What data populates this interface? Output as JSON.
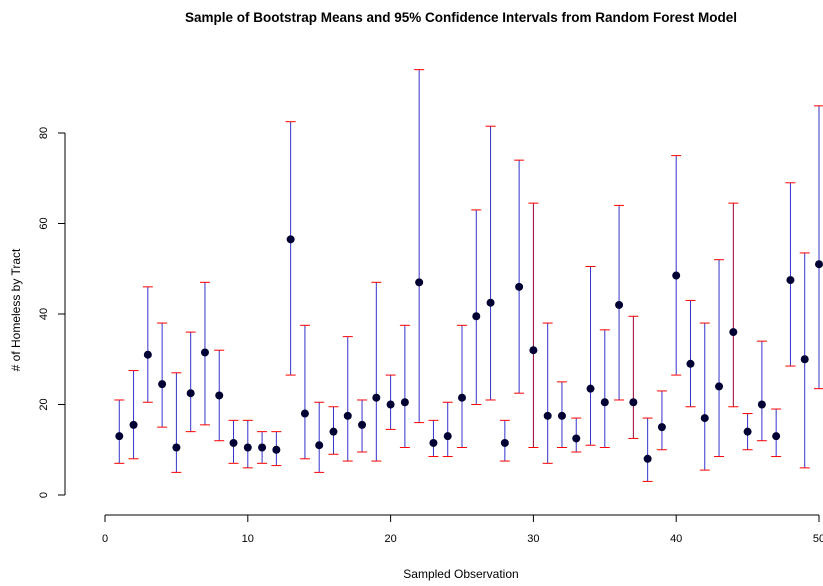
{
  "chart_data": {
    "type": "scatter",
    "title": "Sample of Bootstrap Means and 95% Confidence Intervals from Random Forest Model",
    "xlabel": "Sampled Observation",
    "ylabel": "# of Homeless by Tract",
    "xlim": [
      0,
      50
    ],
    "ylim": [
      0,
      95
    ],
    "xticks": [
      "0",
      "10",
      "20",
      "30",
      "40",
      "50"
    ],
    "yticks": [
      "0",
      "20",
      "40",
      "60",
      "80"
    ],
    "grid": false,
    "colors": {
      "interval": "#3333cc",
      "interval_alt": "#990033",
      "cap": "#ff0000",
      "point": "#000033"
    },
    "x": [
      1,
      2,
      3,
      4,
      5,
      6,
      7,
      8,
      9,
      10,
      11,
      12,
      13,
      14,
      15,
      16,
      17,
      18,
      19,
      20,
      21,
      22,
      23,
      24,
      25,
      26,
      27,
      28,
      29,
      30,
      31,
      32,
      33,
      34,
      35,
      36,
      37,
      38,
      39,
      40,
      41,
      42,
      43,
      44,
      45,
      46,
      47,
      48,
      49,
      50
    ],
    "means": [
      13,
      15.5,
      31,
      24.5,
      10.5,
      22.5,
      31.5,
      22,
      11.5,
      10.5,
      10.5,
      10,
      56.5,
      18,
      11,
      14,
      17.5,
      15.5,
      21.5,
      20,
      20.5,
      47,
      11.5,
      13,
      21.5,
      39.5,
      42.5,
      11.5,
      46,
      32,
      17.5,
      17.5,
      12.5,
      23.5,
      20.5,
      42,
      20.5,
      8,
      15,
      48.5,
      29,
      17,
      24,
      36,
      14,
      20,
      13,
      47.5,
      30,
      51
    ],
    "lower": [
      7,
      8,
      20.5,
      15,
      5,
      14,
      15.5,
      12,
      7,
      6,
      7,
      6.5,
      26.5,
      8,
      5,
      9,
      7.5,
      9.5,
      7.5,
      14.5,
      10.5,
      16,
      8.5,
      8.5,
      10.5,
      20,
      21,
      7.5,
      22.5,
      10.5,
      7,
      10.5,
      9.5,
      11,
      10.5,
      21,
      12.5,
      3,
      10,
      26.5,
      19.5,
      5.5,
      8.5,
      19.5,
      10,
      12,
      8.5,
      28.5,
      6,
      23.5
    ],
    "upper": [
      21,
      27.5,
      46,
      38,
      27,
      36,
      47,
      32,
      16.5,
      16.5,
      14,
      14,
      82.5,
      37.5,
      20.5,
      19.5,
      35,
      21,
      47,
      26.5,
      37.5,
      94,
      16.5,
      20.5,
      37.5,
      63,
      81.5,
      16.5,
      74,
      64.5,
      38,
      25,
      17,
      50.5,
      36.5,
      64,
      39.5,
      17,
      23,
      75,
      43,
      38,
      52,
      64.5,
      18,
      34,
      19,
      69,
      53.5,
      86
    ],
    "interval_color_index": [
      0,
      0,
      0,
      0,
      0,
      0,
      0,
      0,
      0,
      0,
      0,
      0,
      0,
      0,
      0,
      0,
      0,
      0,
      0,
      0,
      0,
      0,
      0,
      0,
      0,
      0,
      0,
      0,
      0,
      1,
      0,
      0,
      0,
      0,
      0,
      0,
      1,
      0,
      0,
      0,
      0,
      0,
      0,
      1,
      0,
      0,
      0,
      0,
      0,
      0
    ]
  }
}
